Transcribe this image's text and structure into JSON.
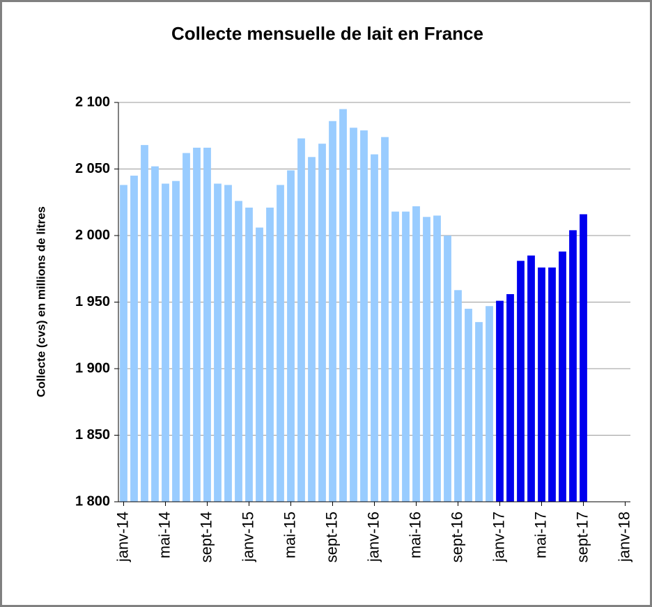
{
  "chart_data": {
    "type": "bar",
    "title": "Collecte mensuelle de lait en France",
    "y_label": "Collecte (cvs) en millions de litres",
    "categories": [
      "janv-14",
      null,
      null,
      null,
      "mai-14",
      null,
      null,
      null,
      "sept-14",
      null,
      null,
      null,
      "janv-15",
      null,
      null,
      null,
      "mai-15",
      null,
      null,
      null,
      "sept-15",
      null,
      null,
      null,
      "janv-16",
      null,
      null,
      null,
      "mai-16",
      null,
      null,
      null,
      "sept-16",
      null,
      null,
      null,
      "janv-17",
      null,
      null,
      null,
      "mai-17",
      null,
      null,
      null,
      "sept-17",
      null,
      null,
      null,
      "janv-18"
    ],
    "values": [
      2038,
      2045,
      2068,
      2052,
      2039,
      2041,
      2062,
      2066,
      2066,
      2039,
      2038,
      2026,
      2021,
      2006,
      2021,
      2038,
      2049,
      2073,
      2059,
      2069,
      2086,
      2095,
      2081,
      2079,
      2061,
      2074,
      2018,
      2018,
      2022,
      2014,
      2015,
      2000,
      1959,
      1945,
      1935,
      1947,
      1951,
      1956,
      1981,
      1985,
      1976,
      1976,
      1988,
      2004,
      2016,
      null,
      null,
      null,
      null
    ],
    "bar_colors": [
      "#99ccff",
      "#99ccff",
      "#99ccff",
      "#99ccff",
      "#99ccff",
      "#99ccff",
      "#99ccff",
      "#99ccff",
      "#99ccff",
      "#99ccff",
      "#99ccff",
      "#99ccff",
      "#99ccff",
      "#99ccff",
      "#99ccff",
      "#99ccff",
      "#99ccff",
      "#99ccff",
      "#99ccff",
      "#99ccff",
      "#99ccff",
      "#99ccff",
      "#99ccff",
      "#99ccff",
      "#99ccff",
      "#99ccff",
      "#99ccff",
      "#99ccff",
      "#99ccff",
      "#99ccff",
      "#99ccff",
      "#99ccff",
      "#99ccff",
      "#99ccff",
      "#99ccff",
      "#99ccff",
      "#0000ee",
      "#0000ee",
      "#0000ee",
      "#0000ee",
      "#0000ee",
      "#0000ee",
      "#0000ee",
      "#0000ee",
      "#0000ee",
      null,
      null,
      null,
      null
    ],
    "ylim": [
      1800,
      2100
    ],
    "yticks": [
      {
        "value": 1800,
        "label": "1 800"
      },
      {
        "value": 1850,
        "label": "1 850"
      },
      {
        "value": 1900,
        "label": "1 900"
      },
      {
        "value": 1950,
        "label": "1 950"
      },
      {
        "value": 2000,
        "label": "2 000"
      },
      {
        "value": 2050,
        "label": "2 050"
      },
      {
        "value": 2100,
        "label": "2 100"
      }
    ],
    "grid": true
  }
}
